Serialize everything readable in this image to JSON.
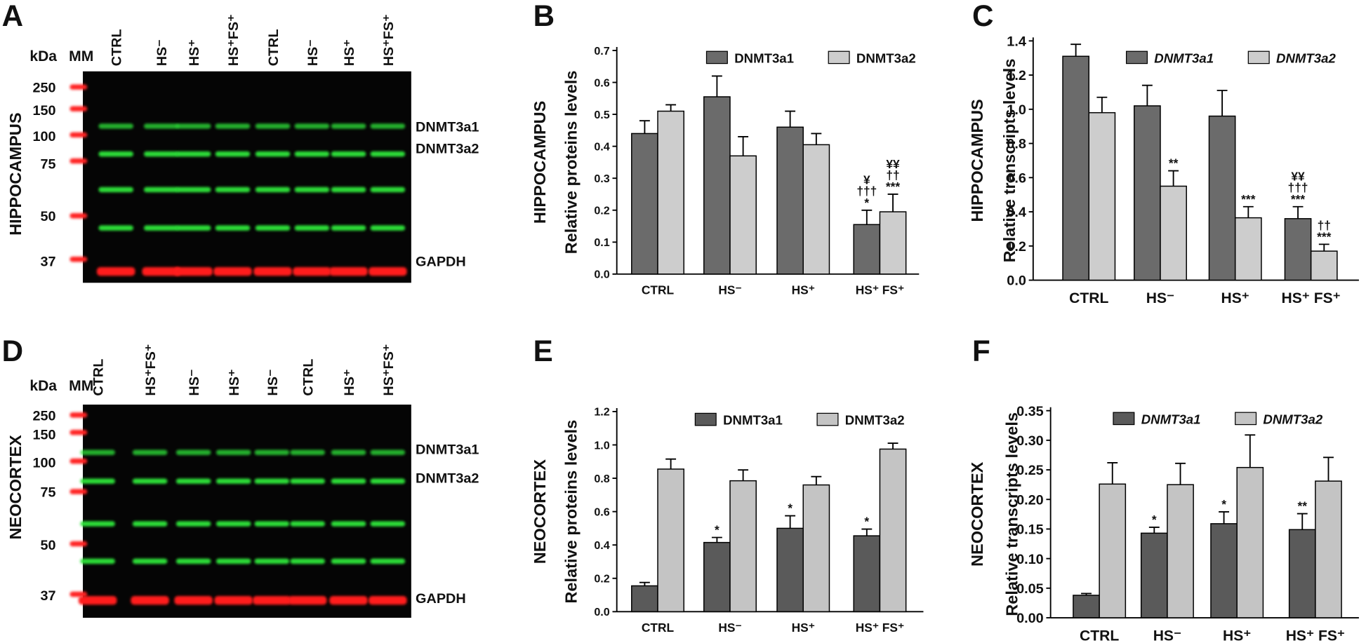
{
  "blots": [
    {
      "letter": "A",
      "row_label": "HIPPOCAMPUS",
      "kda": "kDa",
      "mm": "MM",
      "lanes": [
        "CTRL",
        "HS⁻",
        "HS⁺",
        "HS⁺FS⁺",
        "CTRL",
        "HS⁻",
        "HS⁺",
        "HS⁺FS⁺"
      ],
      "markers": [
        "250",
        "150",
        "100",
        "75",
        "50",
        "37"
      ],
      "band_labels": [
        "DNMT3a1",
        "DNMT3a2",
        "GAPDH"
      ]
    },
    {
      "letter": "D",
      "row_label": "NEOCORTEX",
      "kda": "kDa",
      "mm": "MM",
      "lanes": [
        "CTRL",
        "HS⁺FS⁺",
        "HS⁻",
        "HS⁺",
        "HS⁻",
        "CTRL",
        "HS⁺",
        "HS⁺FS⁺"
      ],
      "markers": [
        "250",
        "150",
        "100",
        "75",
        "50",
        "37"
      ],
      "band_labels": [
        "DNMT3a1",
        "DNMT3a2",
        "GAPDH"
      ]
    }
  ],
  "chart_data": [
    {
      "type": "bar",
      "letter": "B",
      "row_label": "HIPPOCAMPUS",
      "y_label": "Relative proteins levels",
      "categories": [
        "CTRL",
        "HS⁻",
        "HS⁺",
        "HS⁺ FS⁺"
      ],
      "ylim": [
        0,
        0.7
      ],
      "yticks": [
        {
          "value": 0,
          "label": "0.0"
        },
        0.1,
        0.2,
        0.3,
        0.4,
        0.5,
        0.6,
        0.7
      ],
      "series": [
        {
          "name": "DNMT3a1",
          "color": "#6b6b6b",
          "values": [
            0.44,
            0.555,
            0.46,
            0.155
          ],
          "errors": [
            0.04,
            0.065,
            0.05,
            0.045
          ],
          "annotations": [
            null,
            null,
            null,
            [
              "¥",
              "†††",
              "*"
            ]
          ]
        },
        {
          "name": "DNMT3a2",
          "color": "#cdcdcd",
          "values": [
            0.51,
            0.37,
            0.405,
            0.195
          ],
          "errors": [
            0.02,
            0.06,
            0.035,
            0.055
          ],
          "annotations": [
            null,
            null,
            null,
            [
              "¥¥",
              "††",
              "***"
            ]
          ]
        }
      ]
    },
    {
      "type": "bar",
      "letter": "C",
      "row_label": "HIPPOCAMPUS",
      "y_label": "Relative transcripts levels",
      "legend_italic": true,
      "categories": [
        "CTRL",
        "HS⁻",
        "HS⁺",
        "HS⁺ FS⁺"
      ],
      "ylim": [
        0,
        1.4
      ],
      "yticks": [
        {
          "value": 0,
          "label": "0.0"
        },
        0.2,
        0.4,
        0.6,
        0.8,
        {
          "value": 1,
          "label": "1.0"
        },
        1.2,
        1.4
      ],
      "series": [
        {
          "name": "DNMT3a1",
          "color": "#6b6b6b",
          "values": [
            1.31,
            1.02,
            0.96,
            0.36
          ],
          "errors": [
            0.07,
            0.12,
            0.15,
            0.07
          ],
          "annotations": [
            null,
            null,
            null,
            [
              "¥¥",
              "†††",
              "***"
            ]
          ]
        },
        {
          "name": "DNMT3a2",
          "color": "#cdcdcd",
          "values": [
            0.98,
            0.55,
            0.365,
            0.17
          ],
          "errors": [
            0.09,
            0.09,
            0.065,
            0.04
          ],
          "annotations": [
            null,
            [
              "**"
            ],
            [
              "***"
            ],
            [
              "††",
              "***"
            ]
          ]
        }
      ]
    },
    {
      "type": "bar",
      "letter": "E",
      "row_label": "NEOCORTEX",
      "y_label": "Relative proteins levels",
      "categories": [
        "CTRL",
        "HS⁻",
        "HS⁺",
        "HS⁺ FS⁺"
      ],
      "ylim": [
        0,
        1.2
      ],
      "yticks": [
        {
          "value": 0,
          "label": "0.0"
        },
        0.2,
        0.4,
        0.6,
        0.8,
        {
          "value": 1,
          "label": "1.0"
        },
        1.2
      ],
      "series": [
        {
          "name": "DNMT3a1",
          "color": "#5a5a5a",
          "values": [
            0.155,
            0.415,
            0.5,
            0.455
          ],
          "errors": [
            0.02,
            0.03,
            0.075,
            0.04
          ],
          "annotations": [
            null,
            [
              "*"
            ],
            [
              "*"
            ],
            [
              "*"
            ]
          ]
        },
        {
          "name": "DNMT3a2",
          "color": "#c4c4c4",
          "values": [
            0.855,
            0.785,
            0.76,
            0.975
          ],
          "errors": [
            0.06,
            0.065,
            0.05,
            0.035
          ],
          "annotations": [
            null,
            null,
            null,
            null
          ]
        }
      ]
    },
    {
      "type": "bar",
      "letter": "F",
      "row_label": "NEOCORTEX",
      "y_label": "Relative transcripts levels",
      "legend_italic": true,
      "categories": [
        "CTRL",
        "HS⁻",
        "HS⁺",
        "HS⁺ FS⁺"
      ],
      "ylim": [
        0,
        0.35
      ],
      "yticks": [
        {
          "value": 0,
          "label": "0.00"
        },
        0.05,
        {
          "value": 0.1,
          "label": "0.10"
        },
        0.15,
        {
          "value": 0.2,
          "label": "0.20"
        },
        0.25,
        {
          "value": 0.3,
          "label": "0.30"
        },
        0.35
      ],
      "series": [
        {
          "name": "DNMT3a1",
          "color": "#5a5a5a",
          "values": [
            0.038,
            0.143,
            0.159,
            0.149
          ],
          "errors": [
            0.003,
            0.01,
            0.02,
            0.027
          ],
          "annotations": [
            null,
            [
              "*"
            ],
            [
              "*"
            ],
            [
              "**"
            ]
          ]
        },
        {
          "name": "DNMT3a2",
          "color": "#c4c4c4",
          "values": [
            0.226,
            0.225,
            0.254,
            0.231
          ],
          "errors": [
            0.036,
            0.036,
            0.055,
            0.04
          ],
          "annotations": [
            null,
            null,
            null,
            null
          ]
        }
      ]
    }
  ]
}
